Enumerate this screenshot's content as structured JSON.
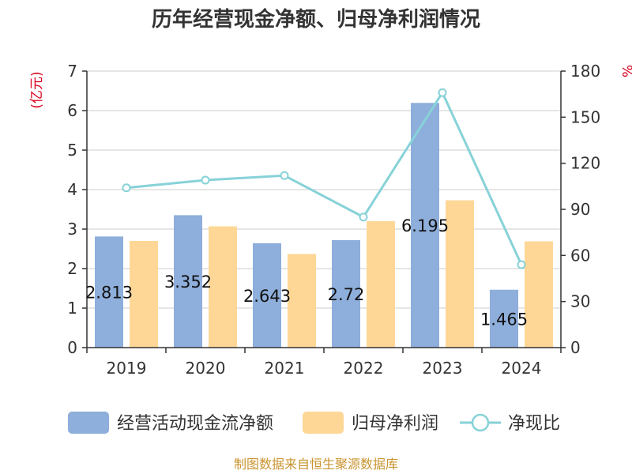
{
  "chart_data": {
    "type": "bar",
    "title": "历年经营现金净额、归母净利润情况",
    "categories": [
      "2019",
      "2020",
      "2021",
      "2022",
      "2023",
      "2024"
    ],
    "series": [
      {
        "name": "经营活动现金流净额",
        "type": "bar",
        "axis": "left",
        "color": "#8eaedb",
        "values": [
          2.813,
          3.352,
          2.643,
          2.72,
          6.195,
          1.465
        ],
        "labels": [
          "2.813",
          "3.352",
          "2.643",
          "2.72",
          "6.195",
          "1.465"
        ]
      },
      {
        "name": "归母净利润",
        "type": "bar",
        "axis": "left",
        "color": "#fed797",
        "values": [
          2.7,
          3.07,
          2.37,
          3.2,
          3.73,
          2.69
        ]
      },
      {
        "name": "净现比",
        "type": "line",
        "axis": "right",
        "color": "#87d2d8",
        "values": [
          104,
          109,
          112,
          85,
          166,
          54
        ]
      }
    ],
    "left_axis": {
      "unit": "(亿元)",
      "ylim": [
        0,
        7
      ],
      "ticks": [
        "0",
        "1",
        "2",
        "3",
        "4",
        "5",
        "6",
        "7"
      ]
    },
    "right_axis": {
      "unit": "%",
      "ylim": [
        0,
        180
      ],
      "ticks": [
        "0",
        "30",
        "60",
        "90",
        "120",
        "150",
        "180"
      ]
    },
    "grid": true,
    "legend_position": "bottom"
  },
  "source_text": "制图数据来自恒生聚源数据库"
}
